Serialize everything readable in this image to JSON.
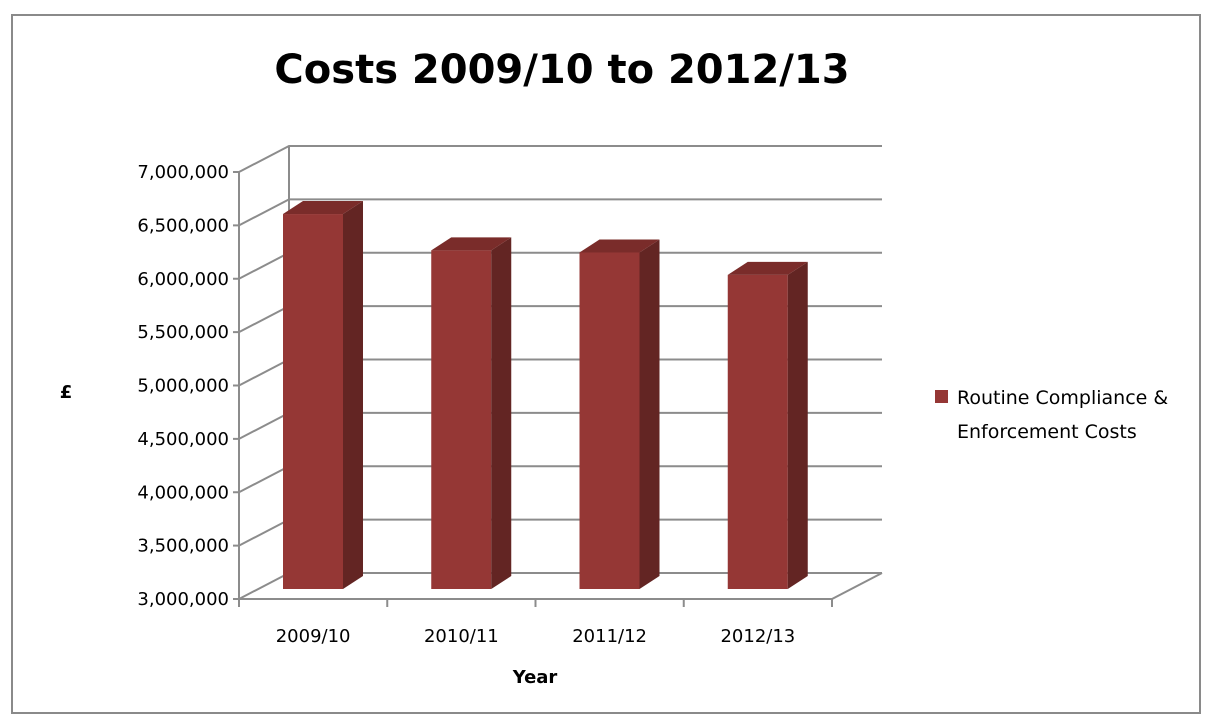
{
  "chart_data": {
    "type": "bar",
    "title": "Costs 2009/10 to 2012/13",
    "xlabel": "Year",
    "ylabel": "£",
    "categories": [
      "2009/10",
      "2010/11",
      "2011/12",
      "2012/13"
    ],
    "series": [
      {
        "name": "Routine Compliance & Enforcement Costs",
        "legend_lines": [
          "Routine Compliance &",
          "Enforcement Costs"
        ],
        "values": [
          6550000,
          6210000,
          6190000,
          5980000
        ],
        "color": "#953735"
      }
    ],
    "ylim": [
      3000000,
      7000000
    ],
    "yticks": [
      "3,000,000",
      "3,500,000",
      "4,000,000",
      "4,500,000",
      "5,000,000",
      "5,500,000",
      "6,000,000",
      "6,500,000",
      "7,000,000"
    ],
    "ytick_values": [
      3000000,
      3500000,
      4000000,
      4500000,
      5000000,
      5500000,
      6000000,
      6500000,
      7000000
    ],
    "grid": true,
    "style": "3d",
    "legend_position": "right"
  },
  "colors": {
    "bar_front": "#953735",
    "bar_side": "#632523",
    "bar_top": "#7a2c2a",
    "grid": "#8c8c8c",
    "frame": "#8a8a8a"
  }
}
